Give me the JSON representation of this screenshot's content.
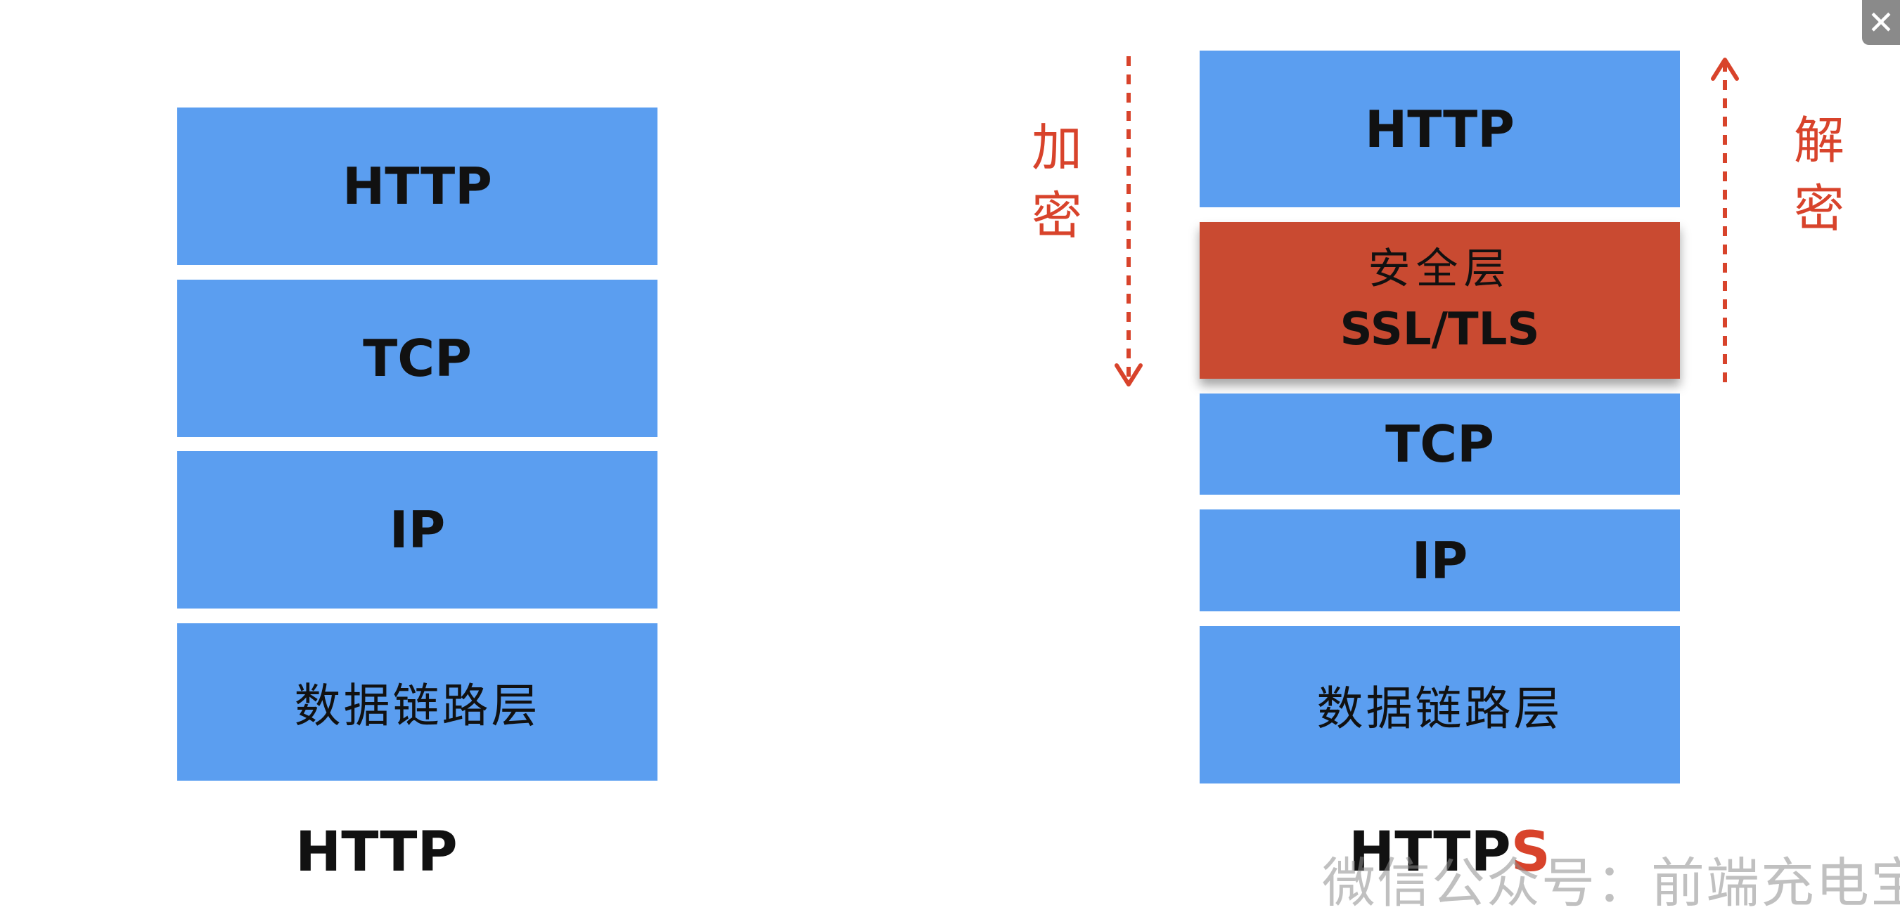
{
  "http_stack": {
    "layers": [
      "HTTP",
      "TCP",
      "IP",
      "数据链路层"
    ],
    "caption": "HTTP"
  },
  "https_stack": {
    "layers": {
      "http": "HTTP",
      "security_line1": "安全层",
      "security_line2": "SSL/TLS",
      "tcp": "TCP",
      "ip": "IP",
      "link": "数据链路层"
    },
    "caption_main": "HTTP",
    "caption_accent": "S"
  },
  "labels": {
    "encrypt": [
      "加",
      "密"
    ],
    "decrypt": [
      "解",
      "密"
    ]
  },
  "watermark": "微信公众号：前端充电宝",
  "colors": {
    "layer_blue": "#5b9ef0",
    "security_red": "#c94a31",
    "accent_red": "#d8432b"
  },
  "close_icon": "close-icon"
}
